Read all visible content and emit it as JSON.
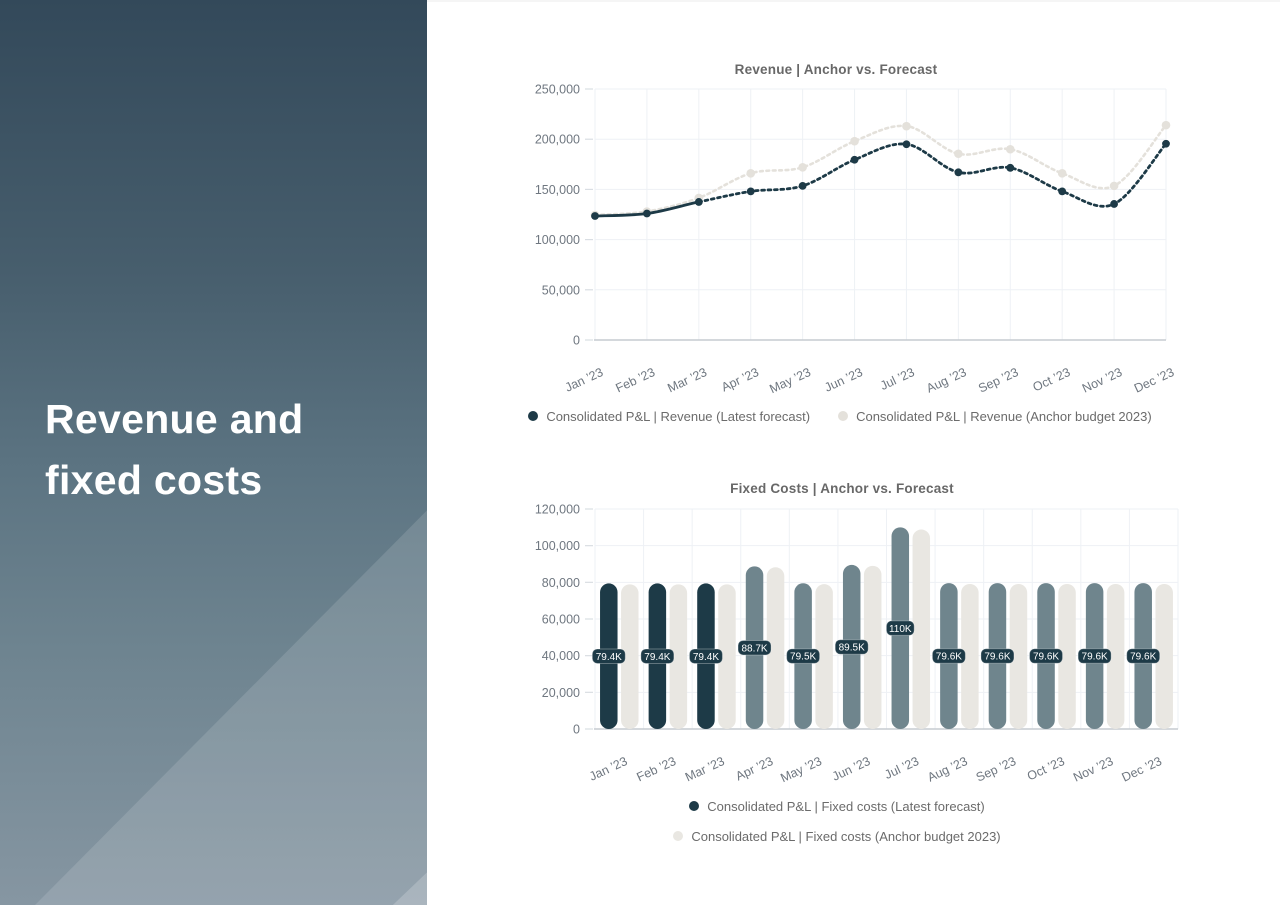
{
  "sidebar": {
    "title_line1": "Revenue and",
    "title_line2": "fixed costs"
  },
  "theme": {
    "panel_top_color": "#33495a",
    "panel_bottom_color": "#8696a2",
    "title_text": "#686868",
    "axis_text": "#6f7780",
    "grid_line": "#eef1f5",
    "axis_line": "#c6cbd1",
    "tick_line": "#d9dee3",
    "legend_text": "#6b6b6b",
    "label_pill_bg": "#1d3a47",
    "label_pill_text": "#ffffff"
  },
  "chart_data": [
    {
      "type": "line",
      "title": "Revenue | Anchor vs. Forecast",
      "categories": [
        "Jan ’23",
        "Feb ’23",
        "Mar ’23",
        "Apr ’23",
        "May ’23",
        "Jun ’23",
        "Jul ’23",
        "Aug ’23",
        "Sep ’23",
        "Oct ’23",
        "Nov ’23",
        "Dec ’23"
      ],
      "series": [
        {
          "name": "Consolidated P&L | Revenue (Latest forecast)",
          "color": "#1d3a47",
          "line_style": "solid-then-dotted",
          "solid_until_index": 2,
          "values": [
            123500,
            126000,
            137500,
            148000,
            153500,
            179500,
            195000,
            167000,
            171500,
            148000,
            135500,
            195500
          ]
        },
        {
          "name": "Consolidated P&L | Revenue (Anchor budget 2023)",
          "color": "#e4e1db",
          "line_style": "dotted",
          "values": [
            124500,
            128000,
            141500,
            166000,
            172000,
            198000,
            213000,
            185500,
            190000,
            166000,
            153500,
            214000
          ]
        }
      ],
      "ylim": [
        0,
        250000
      ],
      "ytick_step": 50000,
      "grid": true,
      "legend_position": "bottom"
    },
    {
      "type": "bar",
      "title": "Fixed Costs | Anchor vs. Forecast",
      "categories": [
        "Jan ’23",
        "Feb ’23",
        "Mar ’23",
        "Apr ’23",
        "May ’23",
        "Jun ’23",
        "Jul ’23",
        "Aug ’23",
        "Sep ’23",
        "Oct ’23",
        "Nov ’23",
        "Dec ’23"
      ],
      "series": [
        {
          "name": "Consolidated P&L | Fixed costs (Latest forecast)",
          "legend_color": "#1d3a47",
          "bar_colors": [
            "#1d3a47",
            "#1d3a47",
            "#1d3a47",
            "#6f858d",
            "#6f858d",
            "#6f858d",
            "#6f858d",
            "#6f858d",
            "#6f858d",
            "#6f858d",
            "#6f858d",
            "#6f858d"
          ],
          "values": [
            79400,
            79400,
            79400,
            88700,
            79500,
            89500,
            110000,
            79600,
            79600,
            79600,
            79600,
            79600
          ],
          "value_labels": [
            "79.4K",
            "79.4K",
            "79.4K",
            "88.7K",
            "79.5K",
            "89.5K",
            "110K",
            "79.6K",
            "79.6K",
            "79.6K",
            "79.6K",
            "79.6K"
          ]
        },
        {
          "name": "Consolidated P&L | Fixed costs (Anchor budget 2023)",
          "color": "#e9e7e2",
          "values": [
            78900,
            78900,
            78900,
            88200,
            79000,
            89000,
            108800,
            79100,
            79100,
            79100,
            79100,
            79100
          ]
        }
      ],
      "ylim": [
        0,
        120000
      ],
      "ytick_step": 20000,
      "grid": true,
      "legend_position": "bottom"
    }
  ]
}
